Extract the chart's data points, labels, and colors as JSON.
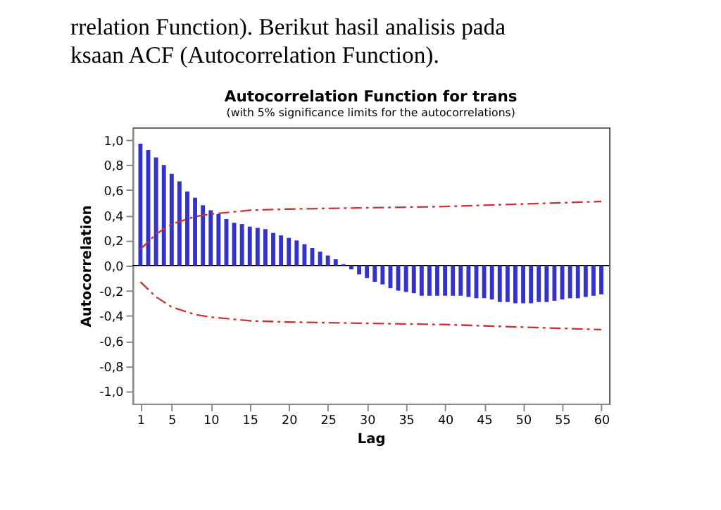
{
  "chart_data": {
    "type": "bar",
    "title": "Autocorrelation Function for trans",
    "subtitle": "(with 5% significance limits for the autocorrelations)",
    "xlabel": "Lag",
    "ylabel": "Autocorrelation",
    "annotations": [
      "rrelation  Function).  Berikut  hasil  analisis  pada",
      "ksaan ACF (Autocorrelation Function)."
    ],
    "x": [
      1,
      2,
      3,
      4,
      5,
      6,
      7,
      8,
      9,
      10,
      11,
      12,
      13,
      14,
      15,
      16,
      17,
      18,
      19,
      20,
      21,
      22,
      23,
      24,
      25,
      26,
      27,
      28,
      29,
      30,
      31,
      32,
      33,
      34,
      35,
      36,
      37,
      38,
      39,
      40,
      41,
      42,
      43,
      44,
      45,
      46,
      47,
      48,
      49,
      50,
      51,
      52,
      53,
      54,
      55,
      56,
      57,
      58,
      59,
      60
    ],
    "series": [
      {
        "color": "#3333cc",
        "values": [
          0.97,
          0.92,
          0.86,
          0.8,
          0.73,
          0.67,
          0.59,
          0.54,
          0.48,
          0.44,
          0.41,
          0.37,
          0.34,
          0.33,
          0.31,
          0.3,
          0.29,
          0.26,
          0.24,
          0.22,
          0.2,
          0.17,
          0.14,
          0.11,
          0.08,
          0.05,
          0.01,
          -0.03,
          -0.07,
          -0.1,
          -0.13,
          -0.15,
          -0.18,
          -0.2,
          -0.21,
          -0.22,
          -0.24,
          -0.24,
          -0.24,
          -0.24,
          -0.24,
          -0.24,
          -0.25,
          -0.26,
          -0.26,
          -0.27,
          -0.29,
          -0.29,
          -0.3,
          -0.3,
          -0.3,
          -0.29,
          -0.29,
          -0.28,
          -0.27,
          -0.26,
          -0.26,
          -0.25,
          -0.24,
          -0.23
        ]
      },
      {
        "type": "line",
        "color": "#cc3333",
        "line_style": "dashed",
        "x": [
          1,
          2,
          3,
          5,
          8,
          10,
          15,
          20,
          30,
          40,
          50,
          60
        ],
        "values": [
          0.13,
          0.19,
          0.25,
          0.33,
          0.39,
          0.41,
          0.44,
          0.45,
          0.46,
          0.47,
          0.49,
          0.51
        ]
      },
      {
        "type": "line",
        "color": "#cc3333",
        "line_style": "dashed",
        "x": [
          1,
          2,
          3,
          5,
          8,
          10,
          15,
          20,
          30,
          40,
          50,
          60
        ],
        "values": [
          -0.13,
          -0.19,
          -0.25,
          -0.33,
          -0.39,
          -0.41,
          -0.44,
          -0.45,
          -0.46,
          -0.47,
          -0.49,
          -0.51
        ]
      }
    ],
    "xlim": [
      0,
      61
    ],
    "xticks": [
      1,
      5,
      10,
      15,
      20,
      25,
      30,
      35,
      40,
      45,
      50,
      55,
      60
    ],
    "ylim": [
      -1.1,
      1.1
    ],
    "yticks": [
      {
        "value": -1.0,
        "label": "-1,0"
      },
      {
        "value": -0.8,
        "label": "-0,8"
      },
      {
        "value": -0.6,
        "label": "-0,6"
      },
      {
        "value": -0.4,
        "label": "-0,4"
      },
      {
        "value": -0.2,
        "label": "-0,2"
      },
      {
        "value": 0.0,
        "label": "0,0"
      },
      {
        "value": 0.2,
        "label": "0,2"
      },
      {
        "value": 0.4,
        "label": "0,4"
      },
      {
        "value": 0.6,
        "label": "0,6"
      },
      {
        "value": 0.8,
        "label": "0,8"
      },
      {
        "value": 1.0,
        "label": "1,0"
      }
    ],
    "ref_lines": [
      {
        "axis": "y",
        "value": 0,
        "color": "#000000"
      }
    ],
    "grid": false
  }
}
